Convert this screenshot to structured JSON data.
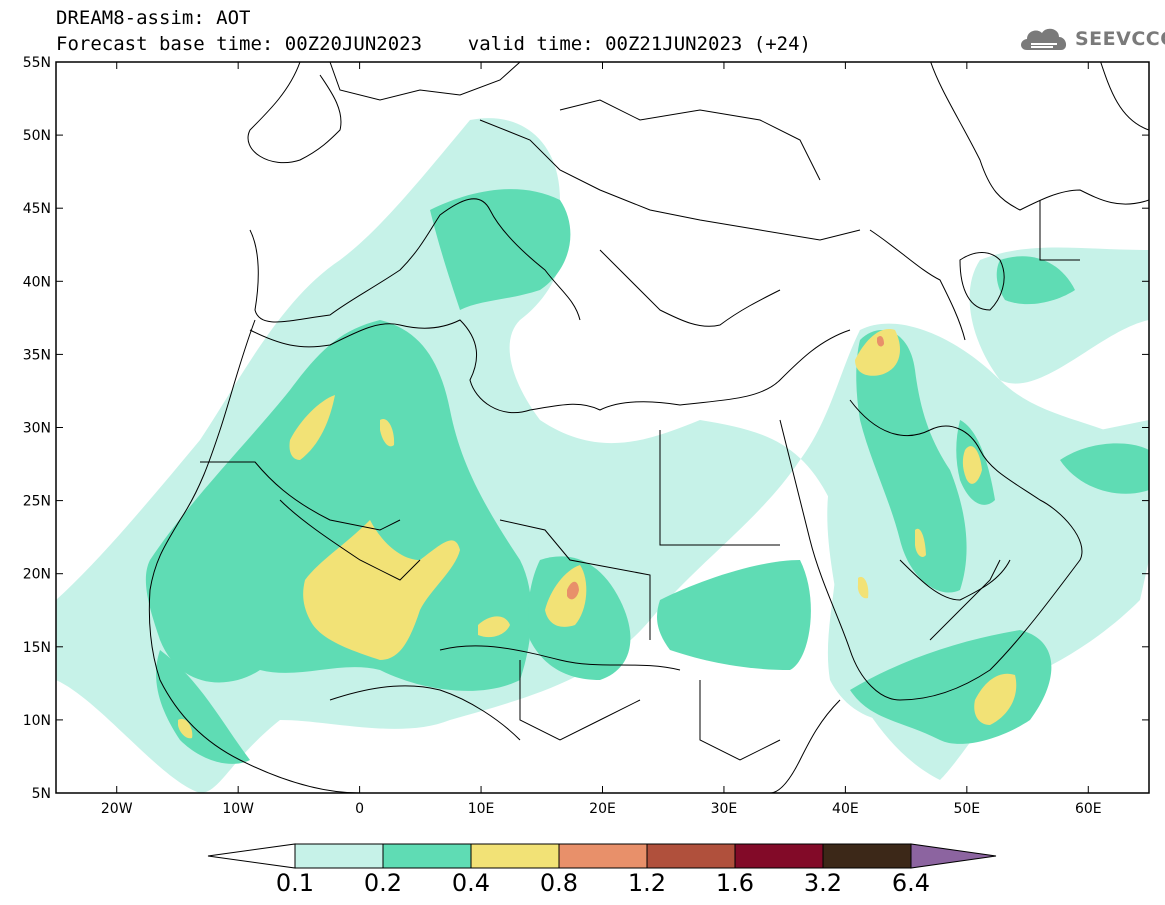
{
  "title": {
    "line1": "DREAM8-assim: AOT",
    "line2": "Forecast base time: 00Z20JUN2023    valid time: 00Z21JUN2023 (+24)"
  },
  "logo": {
    "text": "SEEVCCC",
    "icon": "cloud-icon"
  },
  "map": {
    "projection": "lat-lon",
    "lon_range": [
      -25,
      65
    ],
    "lat_range": [
      5,
      55
    ],
    "lat_labels": [
      "55N",
      "50N",
      "45N",
      "40N",
      "35N",
      "30N",
      "25N",
      "20N",
      "15N",
      "10N",
      "5N"
    ],
    "lon_labels": [
      "20W",
      "10W",
      "0",
      "10E",
      "20E",
      "30E",
      "40E",
      "50E",
      "60E"
    ],
    "variable": "AOT",
    "model": "DREAM8-assim"
  },
  "colorbar": {
    "labels": [
      "0.1",
      "0.2",
      "0.4",
      "0.8",
      "1.2",
      "1.6",
      "3.2",
      "6.4"
    ],
    "colors": [
      "#c6f2e8",
      "#5fdcb4",
      "#f2e276",
      "#e8906a",
      "#b0503c",
      "#820a28",
      "#3c2818",
      "#8c64a0"
    ],
    "arrows": [
      "left-white",
      "right-purple"
    ]
  }
}
